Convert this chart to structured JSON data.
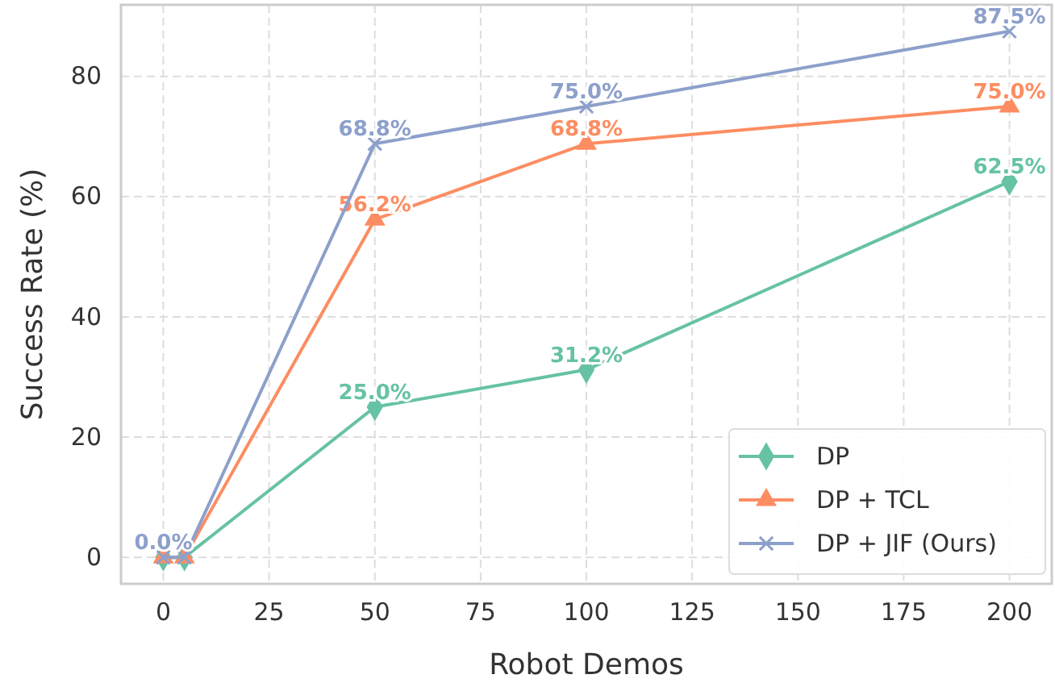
{
  "chart_data": {
    "type": "line",
    "xlabel": "Robot Demos",
    "ylabel": "Success Rate (%)",
    "x": [
      0,
      5,
      50,
      100,
      200
    ],
    "xlim": [
      -10,
      210
    ],
    "ylim": [
      -4.4,
      91.9
    ],
    "xticks": [
      0,
      25,
      50,
      75,
      100,
      125,
      150,
      175,
      200
    ],
    "yticks": [
      0,
      20,
      40,
      60,
      80
    ],
    "grid": true,
    "legend": "bottom right",
    "line_style": "solid",
    "series": [
      {
        "name": "DP",
        "color": "#66c2a5",
        "marker": "diamond",
        "values": [
          0,
          0,
          25,
          31.2,
          62.5
        ],
        "value_labels": [
          null,
          null,
          "25.0%",
          "31.2%",
          "62.5%"
        ]
      },
      {
        "name": "DP + TCL",
        "color": "#fc8d62",
        "marker": "triangle",
        "values": [
          0,
          0,
          56.2,
          68.8,
          75
        ],
        "value_labels": [
          null,
          null,
          "56.2%",
          "68.8%",
          "75.0%"
        ]
      },
      {
        "name": "DP + JIF (Ours)",
        "color": "#8da0cb",
        "marker": "cross",
        "values": [
          0,
          0,
          68.8,
          75,
          87.5
        ],
        "value_labels": [
          "0.0%",
          null,
          "68.8%",
          "75.0%",
          "87.5%"
        ]
      }
    ]
  }
}
